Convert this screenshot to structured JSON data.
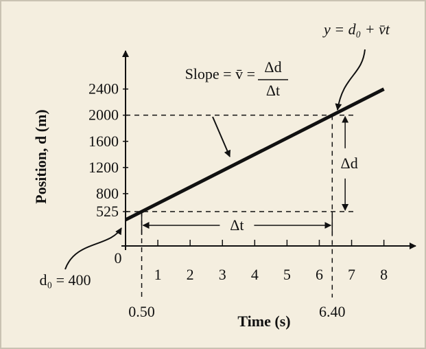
{
  "chart_data": {
    "type": "line",
    "x_label": "Time (s)",
    "y_label": "Position, d (m)",
    "x": [
      0,
      8
    ],
    "values": [
      400,
      2400
    ],
    "color": "#111111",
    "xlim": [
      0,
      8.9
    ],
    "ylim": [
      0,
      2900
    ],
    "xticks": [
      0,
      1,
      2,
      3,
      4,
      5,
      6,
      7,
      8
    ],
    "yticks": [
      525,
      800,
      1200,
      1600,
      2000,
      2400
    ],
    "points": {
      "x": [
        {
          "value": 0.5,
          "label": "0.50"
        },
        {
          "value": 6.4,
          "label": "6.40"
        }
      ],
      "values": [
        525,
        2000
      ]
    },
    "slope_label": "Slope = v̄ =",
    "slope_fraction": {
      "numerator": "Δd",
      "denominator": "Δt"
    },
    "equation": "y = d₀ + v̄t",
    "d0_label": "d₀ = 400",
    "delta_d": "Δd",
    "delta_t": "Δt"
  }
}
